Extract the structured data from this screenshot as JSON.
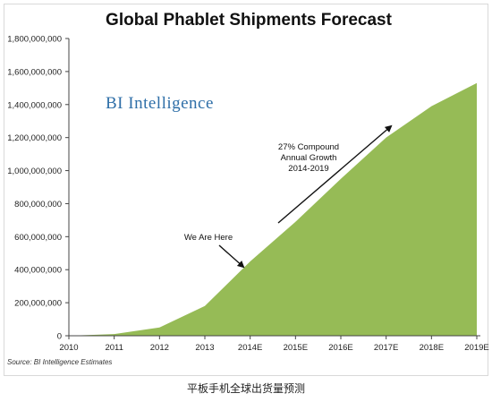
{
  "chart_data": {
    "type": "area",
    "title": "Global Phablet Shipments Forecast",
    "xlabel": "",
    "ylabel": "",
    "x": [
      "2010",
      "2011",
      "2012",
      "2013",
      "2014E",
      "2015E",
      "2016E",
      "2017E",
      "2018E",
      "2019E"
    ],
    "values": [
      0,
      10000000,
      50000000,
      180000000,
      450000000,
      690000000,
      950000000,
      1200000000,
      1390000000,
      1530000000
    ],
    "ylim": [
      0,
      1800000000
    ],
    "yticks": [
      "0",
      "200,000,000",
      "400,000,000",
      "600,000,000",
      "800,000,000",
      "1,000,000,000",
      "1,200,000,000",
      "1,400,000,000",
      "1,600,000,000",
      "1,800,000,000"
    ],
    "fill_color": "#96bb56",
    "grid": false,
    "annotations": {
      "here_label": "We Are Here",
      "growth_lines": [
        "27% Compound",
        "Annual Growth",
        "2014-2019"
      ]
    },
    "watermark": "BI Intelligence",
    "source": "Source: BI Intelligence Estimates"
  },
  "caption": "平板手机全球出货量预测"
}
